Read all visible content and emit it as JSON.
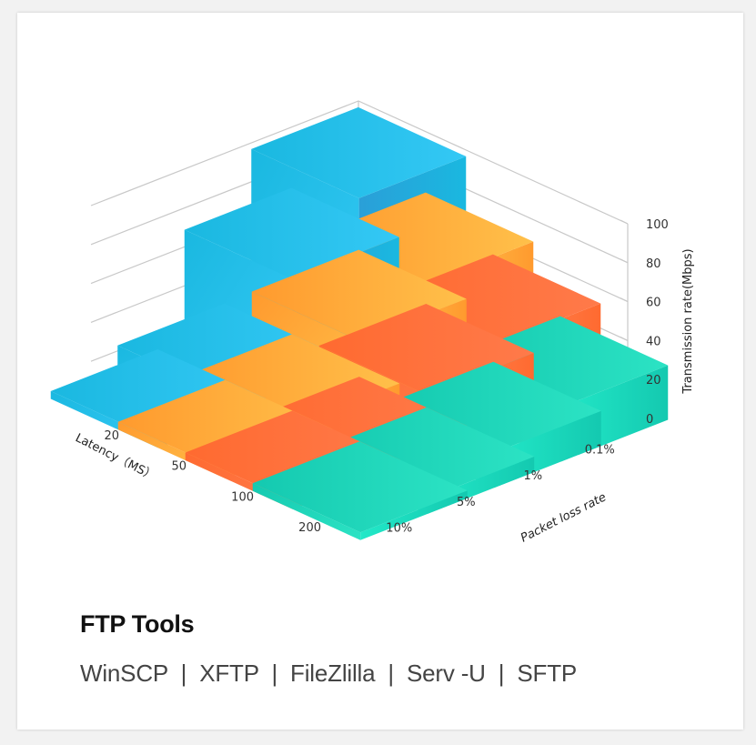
{
  "card": {
    "title": "FTP Tools",
    "subtitle_items": [
      "WinSCP",
      "XFTP",
      "FileZlilla",
      "Serv -U",
      "SFTP"
    ],
    "subtitle_separator": "  |  ",
    "subtitle": "WinSCP  |  XFTP  |  FileZlilla  |  Serv -U  |  SFTP"
  },
  "chart_data": {
    "type": "bar3d",
    "title": "",
    "x_axis": {
      "label": "Latency（MS）",
      "categories": [
        "20",
        "50",
        "100",
        "200"
      ]
    },
    "y_axis": {
      "label": "Packet loss rate",
      "categories": [
        "0.1%",
        "1%",
        "5%",
        "10%"
      ]
    },
    "z_axis": {
      "label": "Transmission rate(Mbps)",
      "ticks": [
        "0",
        "20",
        "40",
        "60",
        "80",
        "100"
      ],
      "range": [
        0,
        100
      ]
    },
    "grid": true,
    "series": [
      {
        "name": "20",
        "color_top": "#34c8f5",
        "color_left": "#1ab8e0",
        "color_right": "#2a9fd8",
        "values": [
          88,
          60,
          14,
          4
        ]
      },
      {
        "name": "50",
        "color_top": "#ffc04a",
        "color_left": "#ff9a2e",
        "color_right": "#ffcc55",
        "values": [
          60,
          44,
          14,
          4
        ]
      },
      {
        "name": "100",
        "color_top": "#ff7a4a",
        "color_left": "#ff6a30",
        "color_right": "#ff8a5a",
        "values": [
          44,
          32,
          8,
          4
        ]
      },
      {
        "name": "200",
        "color_top": "#2ce3c4",
        "color_left": "#14c9b0",
        "color_right": "#22e8c8",
        "values": [
          28,
          18,
          8,
          4
        ]
      }
    ],
    "legend": null
  }
}
